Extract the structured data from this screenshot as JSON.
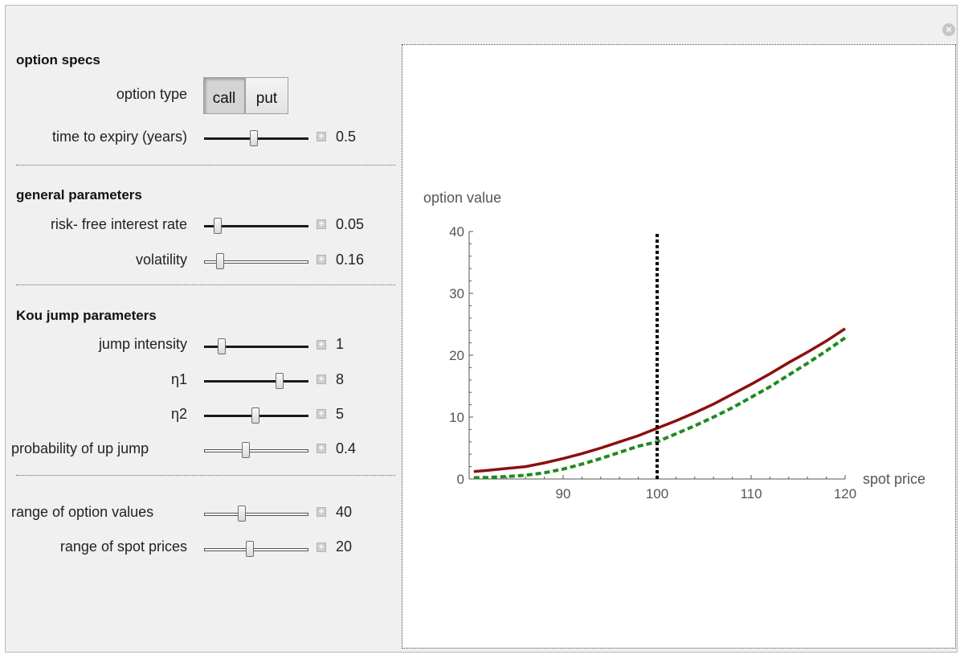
{
  "close_icon": "×",
  "plus_icon": "+",
  "sections": {
    "option_specs": "option specs",
    "general_parameters": "general parameters",
    "kou_jump_parameters": "Kou jump parameters"
  },
  "controls": {
    "option_type_label": "option type",
    "option_type_options": [
      "call",
      "put"
    ],
    "option_type_selected": "call",
    "time_to_expiry": {
      "label": "time to expiry (years)",
      "value": "0.5",
      "fraction": 0.48
    },
    "risk_free_rate": {
      "label": "risk- free interest rate",
      "value": "0.05",
      "fraction": 0.13
    },
    "volatility": {
      "label": "volatility",
      "value": "0.16",
      "fraction": 0.15
    },
    "jump_intensity": {
      "label": "jump intensity",
      "value": "1",
      "fraction": 0.17
    },
    "eta1": {
      "label": "η1",
      "value": "8",
      "fraction": 0.72
    },
    "eta2": {
      "label": "η2",
      "value": "5",
      "fraction": 0.49
    },
    "prob_up_jump": {
      "label": "probability of up jump",
      "value": "0.4",
      "fraction": 0.4
    },
    "range_option_values": {
      "label": "range of option values",
      "value": "40",
      "fraction": 0.36
    },
    "range_spot_prices": {
      "label": "range of spot prices",
      "value": "20",
      "fraction": 0.44
    }
  },
  "chart_data": {
    "type": "line",
    "xlabel": "spot price",
    "ylabel": "option value",
    "xlim": [
      80,
      120
    ],
    "ylim": [
      0,
      40
    ],
    "x_ticks": [
      90,
      100,
      110,
      120
    ],
    "y_ticks": [
      0,
      10,
      20,
      30,
      40
    ],
    "vline_x": 100,
    "colors": {
      "kou": "#8b1010",
      "bs": "#1f8a1f",
      "strike": "#000000"
    },
    "series": [
      {
        "x": [
          80.5,
          82,
          84,
          86,
          88,
          90,
          92,
          94,
          96,
          98,
          100,
          102,
          104,
          106,
          108,
          110,
          112,
          114,
          116,
          118,
          120
        ],
        "values": [
          1.2,
          1.4,
          1.7,
          2.0,
          2.6,
          3.3,
          4.1,
          5.0,
          6.0,
          7.0,
          8.2,
          9.4,
          10.7,
          12.1,
          13.7,
          15.3,
          17.0,
          18.8,
          20.5,
          22.3,
          24.3
        ]
      },
      {
        "x": [
          80.5,
          82,
          84,
          86,
          88,
          90,
          92,
          94,
          96,
          98,
          100,
          102,
          104,
          106,
          108,
          110,
          112,
          114,
          116,
          118,
          120
        ],
        "values": [
          0.2,
          0.25,
          0.4,
          0.6,
          1.0,
          1.6,
          2.4,
          3.3,
          4.3,
          5.3,
          6.0,
          7.3,
          8.6,
          10.0,
          11.5,
          13.2,
          14.9,
          16.8,
          18.7,
          20.7,
          22.8
        ]
      }
    ]
  }
}
